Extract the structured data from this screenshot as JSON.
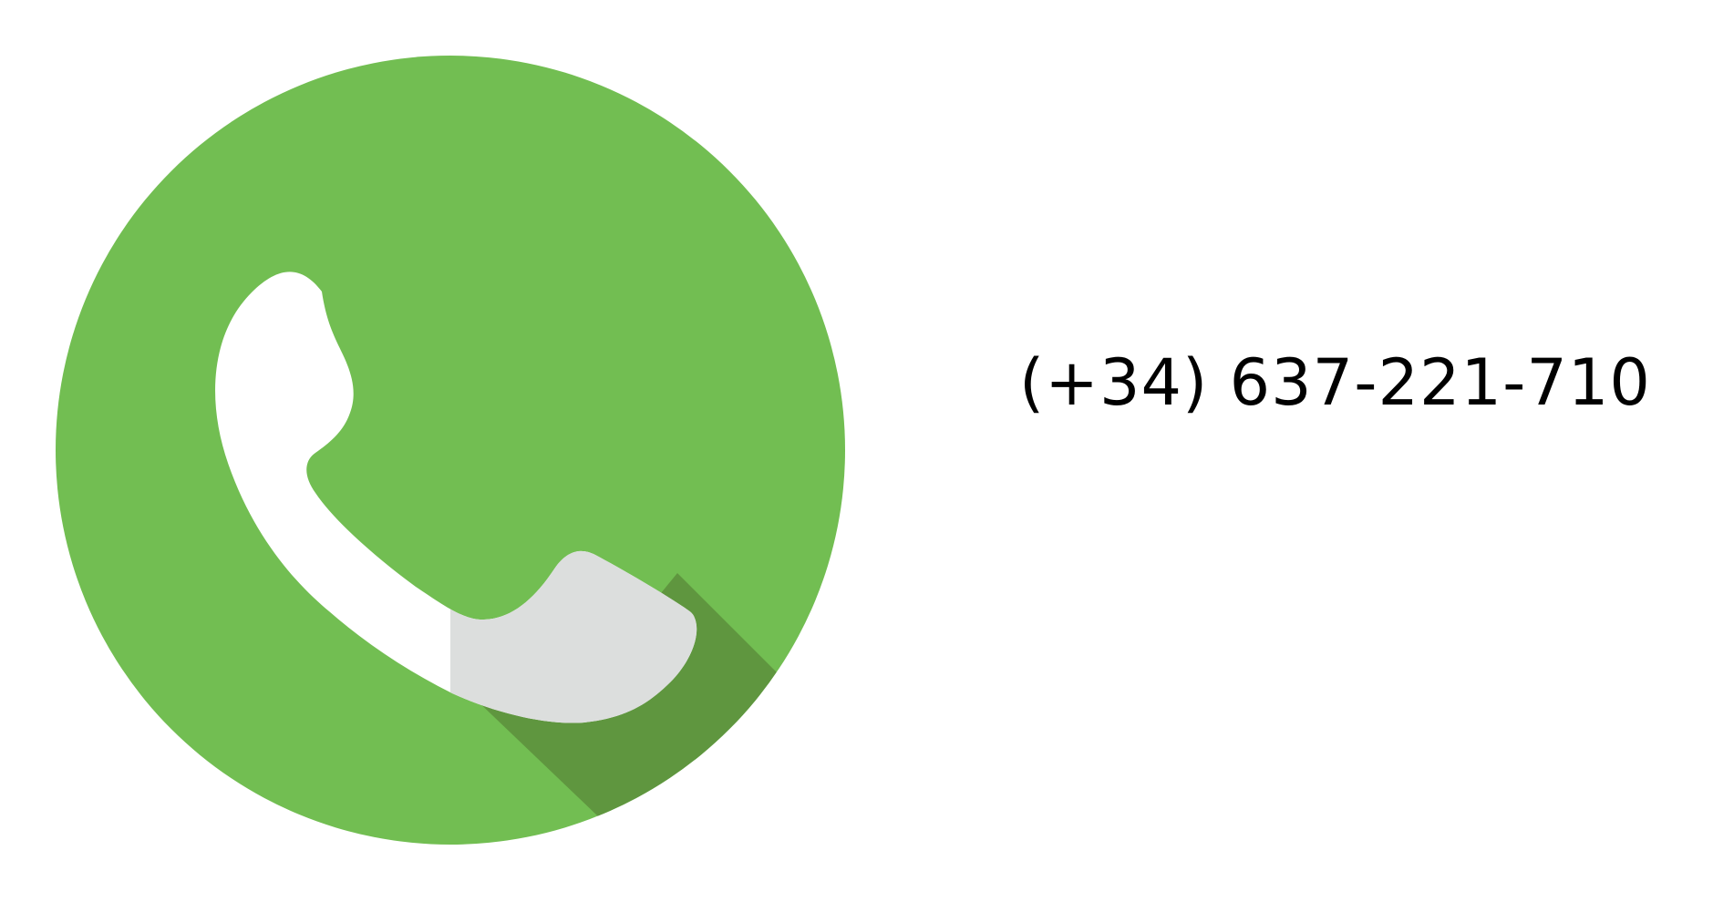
{
  "contact": {
    "phone_number": "(+34) 637-221-710",
    "icon": "phone-handset-icon"
  },
  "colors": {
    "badge_green": "#72be52",
    "shadow_green": "#5f963f",
    "handset_white": "#ffffff",
    "handset_shade": "#dcdedd",
    "text": "#000000"
  }
}
